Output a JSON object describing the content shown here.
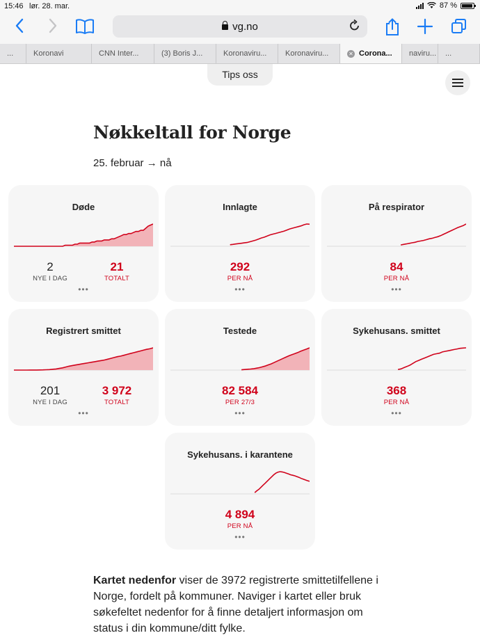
{
  "status_bar": {
    "time": "15:46",
    "date": "lør. 28. mar.",
    "battery": "87 %"
  },
  "browser": {
    "url": "vg.no",
    "tabs": [
      {
        "label": "...",
        "active": false
      },
      {
        "label": "Koronavi",
        "active": false
      },
      {
        "label": "CNN Inter...",
        "active": false
      },
      {
        "label": "(3) Boris J...",
        "active": false
      },
      {
        "label": "Koronaviru...",
        "active": false
      },
      {
        "label": "Koronaviru...",
        "active": false
      },
      {
        "label": "Corona...",
        "active": true
      },
      {
        "label": "naviru...",
        "active": false
      },
      {
        "label": "...",
        "active": false
      }
    ]
  },
  "page": {
    "tips_label": "Tips oss",
    "title": "Nøkkeltall for Norge",
    "date_range": "25. februar → nå",
    "paragraph_bold": "Kartet nedenfor",
    "paragraph_rest": " viser de 3972 registrerte smittetilfellene i Norge, fordelt på kommuner. Naviger i kartet eller bruk søkefeltet nedenfor for å finne detaljert informasjon om status i din kommune/ditt fylke."
  },
  "cards": [
    {
      "title": "Døde",
      "left_value": "2",
      "left_label": "NYE I DAG",
      "right_value": "21",
      "right_label": "TOTALT",
      "more": "•••",
      "trend": [
        0,
        0,
        0,
        0,
        0,
        0,
        0,
        0,
        0,
        0,
        0,
        0,
        0,
        0,
        0,
        0,
        0,
        0,
        0,
        0,
        0,
        1,
        1,
        1,
        1,
        2,
        2,
        3,
        3,
        3,
        3,
        3,
        4,
        4,
        5,
        5,
        5,
        6,
        6,
        6,
        7,
        7,
        8,
        9,
        10,
        11,
        11,
        12,
        12,
        13,
        14,
        14,
        15,
        15,
        17,
        19,
        20,
        21
      ],
      "filled": true
    },
    {
      "title": "Innlagte",
      "center_value": "292",
      "center_label": "PER NÅ",
      "more": "•••",
      "trend": [
        null,
        null,
        null,
        null,
        null,
        null,
        null,
        null,
        null,
        null,
        null,
        null,
        null,
        null,
        null,
        null,
        null,
        null,
        null,
        null,
        null,
        20,
        25,
        30,
        35,
        40,
        45,
        50,
        60,
        70,
        80,
        95,
        110,
        120,
        135,
        150,
        160,
        170,
        180,
        190,
        200,
        215,
        230,
        240,
        250,
        260,
        270,
        285,
        295,
        292
      ],
      "filled": false
    },
    {
      "title": "På respirator",
      "center_value": "84",
      "center_label": "PER NÅ",
      "more": "•••",
      "trend": [
        null,
        null,
        null,
        null,
        null,
        null,
        null,
        null,
        null,
        null,
        null,
        null,
        null,
        null,
        null,
        null,
        null,
        null,
        null,
        null,
        null,
        null,
        null,
        null,
        null,
        null,
        5,
        7,
        9,
        11,
        13,
        15,
        18,
        20,
        22,
        25,
        28,
        30,
        33,
        36,
        40,
        45,
        50,
        55,
        60,
        65,
        70,
        74,
        78,
        84
      ],
      "filled": false
    },
    {
      "title": "Registrert smittet",
      "left_value": "201",
      "left_label": "NYE I DAG",
      "right_value": "3 972",
      "right_label": "TOTALT",
      "more": "•••",
      "trend": [
        1,
        1,
        2,
        4,
        6,
        8,
        12,
        15,
        25,
        40,
        56,
        90,
        150,
        200,
        300,
        400,
        550,
        700,
        800,
        900,
        1000,
        1100,
        1200,
        1300,
        1400,
        1500,
        1600,
        1700,
        1800,
        1950,
        2100,
        2250,
        2400,
        2500,
        2650,
        2800,
        2950,
        3100,
        3250,
        3400,
        3550,
        3700,
        3800,
        3972
      ],
      "filled": true
    },
    {
      "title": "Testede",
      "center_value": "82 584",
      "center_label": "PER 27/3",
      "more": "•••",
      "trend": [
        null,
        null,
        null,
        null,
        null,
        null,
        null,
        null,
        null,
        null,
        null,
        null,
        null,
        null,
        null,
        null,
        null,
        null,
        null,
        null,
        null,
        null,
        null,
        null,
        1000,
        2000,
        3000,
        4000,
        5000,
        7000,
        9000,
        12000,
        15000,
        19000,
        23000,
        28000,
        33000,
        38000,
        43000,
        48000,
        53000,
        57000,
        61000,
        65000,
        70000,
        74000,
        78000,
        82584
      ],
      "filled": true
    },
    {
      "title": "Sykehusans. smittet",
      "center_value": "368",
      "center_label": "PER NÅ",
      "more": "•••",
      "trend": [
        null,
        null,
        null,
        null,
        null,
        null,
        null,
        null,
        null,
        null,
        null,
        null,
        null,
        null,
        null,
        null,
        null,
        null,
        null,
        null,
        null,
        null,
        null,
        null,
        10,
        20,
        40,
        60,
        80,
        110,
        140,
        160,
        180,
        200,
        220,
        240,
        260,
        270,
        280,
        300,
        310,
        320,
        330,
        340,
        350,
        360,
        365,
        368
      ],
      "filled": false
    },
    {
      "title": "Sykehusans. i karantene",
      "center_value": "4 894",
      "center_label": "PER NÅ",
      "more": "•••",
      "trend": [
        null,
        null,
        null,
        null,
        null,
        null,
        null,
        null,
        null,
        null,
        null,
        null,
        null,
        null,
        null,
        null,
        null,
        null,
        null,
        null,
        null,
        null,
        null,
        null,
        null,
        null,
        null,
        null,
        null,
        null,
        null,
        null,
        null,
        null,
        null,
        null,
        null,
        null,
        null,
        null,
        500,
        1200,
        1800,
        2600,
        3400,
        4200,
        5000,
        5800,
        6600,
        7400,
        8000,
        8400,
        8600,
        8500,
        8300,
        8000,
        7700,
        7400,
        7200,
        7000,
        6700,
        6400,
        6000,
        5700,
        5400,
        5100,
        4894
      ],
      "filled": false
    }
  ],
  "colors": {
    "accent_red": "#d0021b",
    "ios_blue": "#1a7cf5",
    "card_bg": "#f6f6f6"
  },
  "icons": [
    "back-arrow-icon",
    "forward-arrow-icon",
    "bookmarks-icon",
    "lock-icon",
    "reload-icon",
    "share-icon",
    "new-tab-icon",
    "tabs-icon",
    "hamburger-menu-icon",
    "wifi-icon",
    "battery-icon",
    "signal-icon"
  ]
}
